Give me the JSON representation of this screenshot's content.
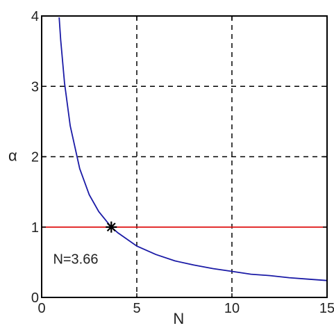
{
  "chart_data": {
    "type": "line",
    "title": "",
    "xlabel": "N",
    "ylabel": "α",
    "xlim": [
      0,
      15
    ],
    "ylim": [
      0,
      4
    ],
    "x_ticks": [
      0,
      5,
      10,
      15
    ],
    "y_ticks": [
      0,
      1,
      2,
      3,
      4
    ],
    "x_tick_labels": [
      "0",
      "5",
      "10",
      "15"
    ],
    "y_tick_labels": [
      "0",
      "1",
      "2",
      "3",
      "4"
    ],
    "grid": "on",
    "series": [
      {
        "color": "#1a1aa6",
        "x": [
          0.92,
          1.0,
          1.2,
          1.5,
          2.0,
          2.5,
          3.0,
          3.66,
          4.0,
          5.0,
          6.0,
          7.0,
          8.0,
          9.0,
          10.0,
          11.0,
          12.0,
          13.0,
          14.0,
          15.0
        ],
        "y": [
          3.98,
          3.66,
          3.05,
          2.44,
          1.83,
          1.46,
          1.22,
          1.0,
          0.92,
          0.73,
          0.61,
          0.52,
          0.46,
          0.41,
          0.37,
          0.33,
          0.31,
          0.28,
          0.26,
          0.24
        ]
      },
      {
        "color": "#e01b1b",
        "x": [
          0,
          15
        ],
        "y": [
          1,
          1
        ]
      }
    ],
    "marker": {
      "x": 3.66,
      "y": 1.0,
      "symbol": "*"
    },
    "annotations": [
      {
        "text": "N=3.66",
        "x": 0.6,
        "y": 0.55
      }
    ]
  }
}
